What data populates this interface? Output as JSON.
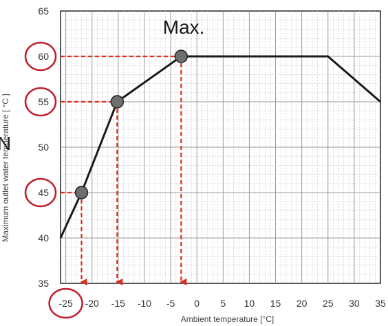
{
  "chart_data": {
    "type": "line",
    "xlabel": "Ambient temperature [°C]",
    "ylabel": "Maximum outlet water temperature [ °C ]",
    "xlim": [
      -26,
      35
    ],
    "ylim": [
      35,
      65
    ],
    "x_ticks": [
      -25,
      -20,
      -15,
      -10,
      -5,
      0,
      5,
      10,
      15,
      20,
      25,
      30,
      35
    ],
    "x_tick_labels": [
      "-25",
      "-20",
      "-15",
      "-10",
      "-5",
      "0",
      "5",
      "10",
      "15",
      "20",
      "25",
      "30",
      "35"
    ],
    "y_ticks": [
      35,
      40,
      45,
      50,
      55,
      60,
      65
    ],
    "y_tick_labels": [
      "35",
      "40",
      "45",
      "50",
      "55",
      "60",
      "65"
    ],
    "grid": true,
    "series": [
      {
        "x": [
          -26,
          -22,
          -15.2,
          -3,
          25,
          35
        ],
        "y": [
          40,
          45,
          55,
          60,
          60,
          55
        ],
        "color": "#1a1a1a"
      }
    ],
    "markers": [
      {
        "x": -22,
        "y": 45
      },
      {
        "x": -15.2,
        "y": 55
      },
      {
        "x": -3,
        "y": 60
      }
    ],
    "highlighted_y_ticks": [
      45,
      55,
      60
    ],
    "highlighted_x_ticks": [
      -25
    ],
    "annotations": [
      {
        "text": "Max.",
        "x": -2.5,
        "y": 62.5
      }
    ],
    "partial_left_text": "N",
    "colors": {
      "line": "#1a1a1a",
      "marker_fill": "#6e6e6e",
      "guide": "#e02b1c",
      "circle": "#c0202c",
      "grid_major": "#9a9a9a",
      "grid_minor": "#c8c8c8"
    }
  }
}
